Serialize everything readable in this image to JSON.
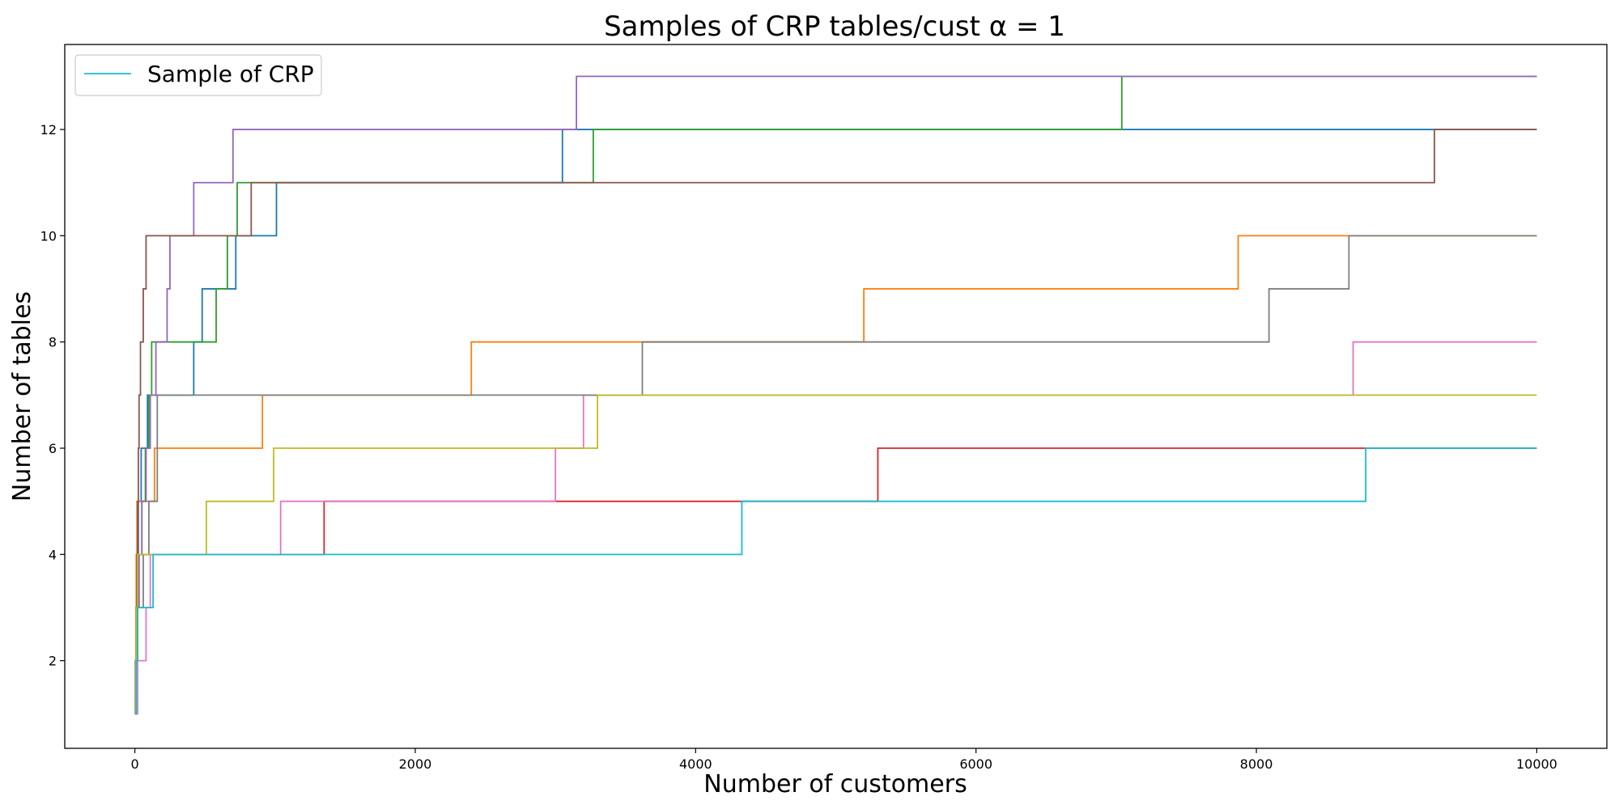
{
  "chart_data": {
    "type": "line",
    "title": "Samples of CRP tables/cust α = 1",
    "xlabel": "Number of customers",
    "ylabel": "Number of tables",
    "xlim": [
      -500,
      10500
    ],
    "ylim": [
      0.35,
      13.6
    ],
    "xticks": [
      0,
      2000,
      4000,
      6000,
      8000,
      10000
    ],
    "yticks": [
      2,
      4,
      6,
      8,
      10,
      12
    ],
    "grid": false,
    "legend": {
      "placement": "top-left",
      "entries": [
        {
          "label": "Sample of CRP",
          "color": "#17becf"
        }
      ]
    },
    "step": "post",
    "series": [
      {
        "color": "#1f77b4",
        "points": [
          [
            0,
            1
          ],
          [
            3,
            2
          ],
          [
            8,
            3
          ],
          [
            14,
            4
          ],
          [
            25,
            5
          ],
          [
            45,
            6
          ],
          [
            90,
            7
          ],
          [
            250,
            7
          ],
          [
            420,
            8
          ],
          [
            480,
            9
          ],
          [
            720,
            10
          ],
          [
            1010,
            11
          ],
          [
            3050,
            12
          ],
          [
            10000,
            12
          ]
        ]
      },
      {
        "color": "#ff7f0e",
        "points": [
          [
            0,
            1
          ],
          [
            4,
            2
          ],
          [
            7,
            3
          ],
          [
            10,
            4
          ],
          [
            15,
            5
          ],
          [
            140,
            6
          ],
          [
            910,
            7
          ],
          [
            2400,
            8
          ],
          [
            5200,
            9
          ],
          [
            7870,
            10
          ],
          [
            8660,
            10
          ],
          [
            10000,
            10
          ]
        ]
      },
      {
        "color": "#2ca02c",
        "points": [
          [
            0,
            1
          ],
          [
            6,
            2
          ],
          [
            12,
            3
          ],
          [
            30,
            4
          ],
          [
            50,
            5
          ],
          [
            75,
            6
          ],
          [
            100,
            7
          ],
          [
            120,
            8
          ],
          [
            420,
            8
          ],
          [
            580,
            9
          ],
          [
            660,
            10
          ],
          [
            730,
            11
          ],
          [
            3270,
            12
          ],
          [
            7040,
            13
          ],
          [
            10000,
            13
          ]
        ]
      },
      {
        "color": "#d62728",
        "points": [
          [
            0,
            1
          ],
          [
            5,
            2
          ],
          [
            10,
            3
          ],
          [
            20,
            4
          ],
          [
            1350,
            5
          ],
          [
            5300,
            6
          ],
          [
            10000,
            6
          ]
        ]
      },
      {
        "color": "#9467bd",
        "points": [
          [
            0,
            1
          ],
          [
            10,
            2
          ],
          [
            20,
            3
          ],
          [
            30,
            4
          ],
          [
            50,
            5
          ],
          [
            80,
            6
          ],
          [
            110,
            7
          ],
          [
            150,
            8
          ],
          [
            230,
            9
          ],
          [
            250,
            10
          ],
          [
            420,
            11
          ],
          [
            700,
            12
          ],
          [
            3150,
            13
          ],
          [
            10000,
            13
          ]
        ]
      },
      {
        "color": "#8c564b",
        "points": [
          [
            0,
            1
          ],
          [
            5,
            2
          ],
          [
            10,
            3
          ],
          [
            15,
            4
          ],
          [
            20,
            5
          ],
          [
            25,
            6
          ],
          [
            30,
            7
          ],
          [
            40,
            8
          ],
          [
            60,
            9
          ],
          [
            80,
            10
          ],
          [
            830,
            11
          ],
          [
            9270,
            12
          ],
          [
            10000,
            12
          ]
        ]
      },
      {
        "color": "#e377c2",
        "points": [
          [
            0,
            1
          ],
          [
            20,
            2
          ],
          [
            80,
            3
          ],
          [
            110,
            4
          ],
          [
            1040,
            5
          ],
          [
            3000,
            6
          ],
          [
            3200,
            7
          ],
          [
            8690,
            8
          ],
          [
            10000,
            8
          ]
        ]
      },
      {
        "color": "#7f7f7f",
        "points": [
          [
            0,
            1
          ],
          [
            8,
            2
          ],
          [
            20,
            3
          ],
          [
            60,
            4
          ],
          [
            100,
            5
          ],
          [
            160,
            7
          ],
          [
            3620,
            8
          ],
          [
            8090,
            9
          ],
          [
            8660,
            10
          ],
          [
            10000,
            10
          ]
        ]
      },
      {
        "color": "#bcbd22",
        "points": [
          [
            0,
            1
          ],
          [
            5,
            2
          ],
          [
            10,
            3
          ],
          [
            20,
            4
          ],
          [
            510,
            5
          ],
          [
            990,
            6
          ],
          [
            3300,
            7
          ],
          [
            10000,
            7
          ]
        ]
      },
      {
        "color": "#17becf",
        "points": [
          [
            0,
            1
          ],
          [
            10,
            2
          ],
          [
            20,
            3
          ],
          [
            130,
            4
          ],
          [
            4330,
            5
          ],
          [
            8780,
            6
          ],
          [
            10000,
            6
          ]
        ]
      }
    ]
  }
}
